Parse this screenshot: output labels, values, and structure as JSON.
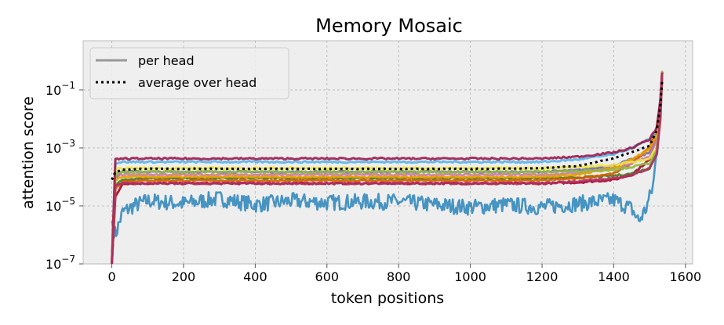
{
  "chart_data": {
    "type": "line",
    "title": "Memory Mosaic",
    "xlabel": "token positions",
    "ylabel": "attention score",
    "xlim": [
      -80,
      1620
    ],
    "ylim_log10": [
      -7,
      0.7
    ],
    "yscale": "log",
    "grid": true,
    "legend_placement": "top-left",
    "xticks": [
      0,
      200,
      400,
      600,
      800,
      1000,
      1200,
      1400,
      1600
    ],
    "xtick_labels": [
      "0",
      "200",
      "400",
      "600",
      "800",
      "1000",
      "1200",
      "1400",
      "1600"
    ],
    "yticks_log10": [
      -7,
      -5,
      -3,
      -1
    ],
    "ytick_labels": [
      {
        "base": "10",
        "exp": "−7"
      },
      {
        "base": "10",
        "exp": "−5"
      },
      {
        "base": "10",
        "exp": "−3"
      },
      {
        "base": "10",
        "exp": "−1"
      }
    ],
    "legend": [
      {
        "label": "per head",
        "style": "solid",
        "color": "#999999"
      },
      {
        "label": "average over head",
        "style": "dotted",
        "color": "#000000"
      }
    ],
    "series": [
      {
        "color": "#348ABD",
        "x": [
          0,
          10,
          30,
          60,
          100,
          200,
          300,
          400,
          500,
          600,
          700,
          800,
          900,
          1000,
          1100,
          1200,
          1300,
          1350,
          1400,
          1450,
          1470,
          1490,
          1510,
          1525,
          1535
        ],
        "y": [
          3e-06,
          1e-06,
          6e-06,
          1e-05,
          1.5e-05,
          1.2e-05,
          1.8e-05,
          1.1e-05,
          1.5e-05,
          1.3e-05,
          1.4e-05,
          1.4e-05,
          1.1e-05,
          9e-06,
          1.1e-05,
          9e-06,
          1.2e-05,
          1.4e-05,
          1.6e-05,
          8e-06,
          3e-06,
          8e-06,
          5e-05,
          0.003,
          0.4
        ]
      },
      {
        "color": "#A60628",
        "x": [
          0,
          10,
          30,
          100,
          300,
          600,
          900,
          1200,
          1300,
          1400,
          1450,
          1500,
          1520,
          1530,
          1535
        ],
        "y": [
          1e-07,
          2e-05,
          6e-05,
          6e-05,
          6e-05,
          6e-05,
          6e-05,
          6e-05,
          6.5e-05,
          8e-05,
          0.00012,
          0.0004,
          0.003,
          0.03,
          0.4
        ]
      },
      {
        "color": "#7A68A6",
        "x": [
          0,
          10,
          30,
          100,
          600,
          1200,
          1300,
          1400,
          1450,
          1500,
          1520,
          1530,
          1535
        ],
        "y": [
          1e-07,
          0.0001,
          0.00015,
          0.00015,
          0.00015,
          0.00015,
          0.00017,
          0.00025,
          0.0004,
          0.0007,
          0.003,
          0.03,
          0.4
        ]
      },
      {
        "color": "#467821",
        "x": [
          0,
          10,
          30,
          100,
          600,
          1200,
          1300,
          1400,
          1450,
          1500,
          1520,
          1530,
          1535
        ],
        "y": [
          1e-07,
          5e-05,
          8e-05,
          9e-05,
          9e-05,
          9e-05,
          9.5e-05,
          0.00011,
          0.00013,
          0.0002,
          0.001,
          0.02,
          0.4
        ]
      },
      {
        "color": "#D55E00",
        "x": [
          0,
          10,
          30,
          100,
          600,
          1200,
          1300,
          1400,
          1450,
          1500,
          1520,
          1530,
          1535
        ],
        "y": [
          1e-07,
          4e-05,
          7e-05,
          7.5e-05,
          7.5e-05,
          7.5e-05,
          9e-05,
          0.00013,
          0.0003,
          0.001,
          0.005,
          0.03,
          0.4
        ]
      },
      {
        "color": "#CC79A7",
        "x": [
          0,
          10,
          30,
          100,
          600,
          1200,
          1300,
          1400,
          1450,
          1500,
          1520,
          1530,
          1535
        ],
        "y": [
          1e-07,
          0.00011,
          0.00012,
          0.00012,
          0.00012,
          0.00012,
          0.00014,
          0.0002,
          0.0003,
          0.0005,
          0.002,
          0.03,
          0.4
        ]
      },
      {
        "color": "#56B4E9",
        "x": [
          0,
          10,
          30,
          100,
          600,
          1200,
          1300,
          1400,
          1450,
          1500,
          1520,
          1530,
          1535
        ],
        "y": [
          1e-07,
          0.0003,
          0.00033,
          0.00033,
          0.00033,
          0.00033,
          0.0004,
          0.0006,
          0.001,
          0.002,
          0.004,
          0.03,
          0.4
        ]
      },
      {
        "color": "#E69F00",
        "x": [
          0,
          10,
          30,
          100,
          600,
          1200,
          1300,
          1400,
          1450,
          1500,
          1520,
          1530,
          1535
        ],
        "y": [
          1e-07,
          8e-05,
          0.0001,
          0.0001,
          0.0001,
          0.0001,
          0.00012,
          0.0002,
          0.0004,
          0.0009,
          0.003,
          0.03,
          0.4
        ]
      },
      {
        "color": "#F0E442",
        "x": [
          0,
          10,
          30,
          100,
          600,
          1200,
          1300,
          1400,
          1450,
          1500,
          1520,
          1530,
          1535
        ],
        "y": [
          1e-07,
          0.00018,
          0.0002,
          0.0002,
          0.0002,
          0.0002,
          0.00022,
          0.00026,
          0.00032,
          0.00045,
          0.001,
          0.01,
          0.4
        ]
      },
      {
        "color": "#8EBA42",
        "x": [
          0,
          10,
          30,
          100,
          600,
          1200,
          1300,
          1400,
          1450,
          1500,
          1520,
          1530,
          1535
        ],
        "y": [
          1e-07,
          0.00013,
          0.00015,
          0.00015,
          0.00015,
          0.00015,
          0.00016,
          0.00018,
          0.00022,
          0.0003,
          0.0008,
          0.01,
          0.4
        ]
      },
      {
        "color": "#9B1B4B",
        "x": [
          0,
          10,
          30,
          100,
          600,
          1200,
          1300,
          1400,
          1450,
          1500,
          1520,
          1530,
          1535
        ],
        "y": [
          1e-07,
          0.0004,
          0.00043,
          0.00043,
          0.00043,
          0.00043,
          0.0005,
          0.0007,
          0.001,
          0.002,
          0.005,
          0.05,
          0.4
        ]
      },
      {
        "color": "#B03060",
        "x": [
          0,
          10,
          30,
          100,
          600,
          1200,
          1300,
          1400,
          1450,
          1500,
          1520,
          1530,
          1535
        ],
        "y": [
          1e-07,
          5e-05,
          6e-05,
          6e-05,
          6e-05,
          6e-05,
          7e-05,
          9e-05,
          0.00012,
          0.0002,
          0.0006,
          0.01,
          0.4
        ]
      }
    ],
    "average": {
      "color": "#000000",
      "x": [
        0,
        10,
        30,
        100,
        600,
        1000,
        1200,
        1300,
        1350,
        1400,
        1450,
        1500,
        1520,
        1530,
        1535
      ],
      "y": [
        8e-05,
        0.00015,
        0.00018,
        0.00019,
        0.00019,
        0.00019,
        0.0002,
        0.00024,
        0.00032,
        0.00045,
        0.0007,
        0.0012,
        0.004,
        0.03,
        0.2
      ]
    }
  }
}
